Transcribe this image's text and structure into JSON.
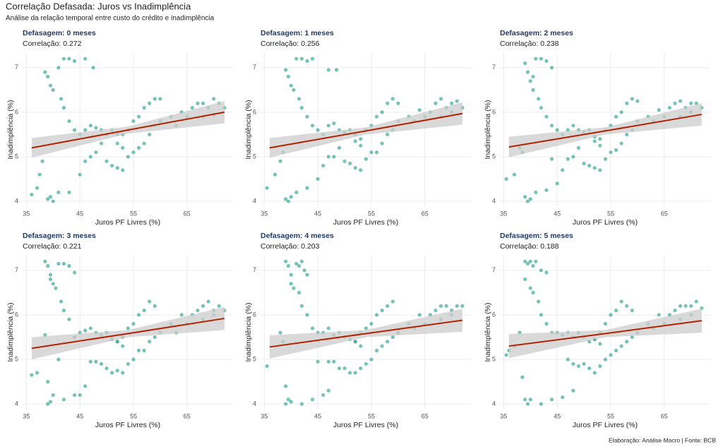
{
  "header": {
    "title": "Correlação Defasada: Juros vs Inadimplência",
    "subtitle": "Análise da relação temporal entre custo do crédito e inadimplência"
  },
  "caption": "Elaboração: Análise Macro | Fonte: BCB",
  "chart_data": [
    {
      "type": "scatter",
      "title": "Defasagem: 0 meses",
      "subtitle": "Correlação: 0.272",
      "x_label": "Juros PF Livres (%)",
      "y_label": "Inadimplência (%)",
      "xlim": [
        34.3,
        73.6
      ],
      "ylim": [
        3.89,
        7.33
      ],
      "xticks": [
        35,
        45,
        55,
        65
      ],
      "yticks": [
        4,
        5,
        6,
        7
      ],
      "grid": true,
      "color": "#3aa897",
      "fit_color": "#b22200",
      "band_color": "#cccccc",
      "x": [
        36,
        37,
        37.5,
        38,
        39,
        39.5,
        40,
        41,
        43,
        45,
        46,
        38.5,
        39,
        39.5,
        40,
        41,
        42,
        43,
        44,
        46,
        47.5,
        41.5,
        42,
        43,
        44,
        45,
        46,
        47,
        48,
        49,
        50,
        51,
        52,
        53,
        54,
        55,
        56,
        57,
        58,
        59,
        60,
        47,
        48,
        49,
        50,
        51,
        52,
        53,
        54,
        55,
        56,
        57,
        58,
        59,
        60,
        62,
        63,
        65,
        66,
        67,
        68,
        69,
        70,
        71,
        72,
        70,
        68,
        64,
        52,
        53
      ],
      "y": [
        4.15,
        4.3,
        4.6,
        4.9,
        4.05,
        4.1,
        4.0,
        4.2,
        4.2,
        4.6,
        4.9,
        6.9,
        6.8,
        6.6,
        6.5,
        7.0,
        7.2,
        7.2,
        7.15,
        7.2,
        7.0,
        6.3,
        6.1,
        5.8,
        5.6,
        5.5,
        5.6,
        5.7,
        5.65,
        5.6,
        5.5,
        5.6,
        5.5,
        5.5,
        5.6,
        5.8,
        5.9,
        6.1,
        6.2,
        6.3,
        6.3,
        5.0,
        5.1,
        5.3,
        4.9,
        4.8,
        4.75,
        4.7,
        5.0,
        5.1,
        5.2,
        5.3,
        5.5,
        5.7,
        5.8,
        5.9,
        5.7,
        5.9,
        6.1,
        6.2,
        6.2,
        6.1,
        6.3,
        6.2,
        6.1,
        5.95,
        5.9,
        6.0,
        5.3,
        5.2
      ],
      "fit": {
        "x": [
          36,
          54,
          72
        ],
        "y": [
          5.2,
          5.6,
          6.0
        ],
        "lower": [
          4.98,
          5.52,
          5.75
        ],
        "upper": [
          5.42,
          5.68,
          6.25
        ]
      }
    },
    {
      "type": "scatter",
      "title": "Defasagem: 1 meses",
      "subtitle": "Correlação: 0.256",
      "x_label": "Juros PF Livres (%)",
      "y_label": "Inadimplência (%)",
      "xlim": [
        34.3,
        73.6
      ],
      "ylim": [
        3.89,
        7.33
      ],
      "xticks": [
        35,
        45,
        55,
        65
      ],
      "yticks": [
        4,
        5,
        6,
        7
      ],
      "grid": true,
      "color": "#3aa897",
      "fit_color": "#b22200",
      "band_color": "#cccccc",
      "x": [
        35.5,
        37,
        38,
        38.5,
        39,
        39.5,
        40,
        41,
        43,
        45,
        46,
        39,
        39.5,
        40,
        40.5,
        41,
        42,
        43,
        44,
        47,
        48.5,
        41.5,
        42,
        43,
        44,
        45,
        46,
        47,
        48,
        49,
        50,
        51,
        52,
        53,
        54,
        55,
        56,
        57,
        58,
        59,
        60,
        47,
        48,
        49,
        50,
        51,
        52,
        53,
        54,
        55,
        56,
        57,
        58,
        59,
        60,
        62,
        63,
        65,
        66,
        67,
        68,
        69,
        70,
        71,
        72,
        70,
        68,
        64,
        52,
        53
      ],
      "y": [
        4.3,
        4.6,
        4.9,
        5.1,
        4.05,
        4.0,
        4.1,
        4.2,
        4.3,
        4.5,
        4.8,
        6.95,
        6.8,
        6.6,
        6.5,
        7.2,
        7.2,
        7.15,
        7.2,
        6.95,
        6.95,
        6.3,
        6.1,
        5.9,
        5.7,
        5.6,
        5.5,
        5.7,
        5.75,
        5.6,
        5.55,
        5.6,
        5.5,
        5.4,
        5.6,
        5.7,
        5.9,
        6.0,
        6.2,
        6.3,
        6.2,
        5.0,
        5.0,
        5.2,
        4.9,
        4.85,
        4.75,
        4.7,
        4.95,
        5.1,
        5.1,
        5.3,
        5.5,
        5.6,
        5.8,
        5.9,
        5.8,
        5.9,
        6.0,
        6.2,
        6.3,
        6.1,
        6.2,
        6.25,
        6.1,
        6.0,
        5.9,
        6.05,
        5.35,
        5.25
      ],
      "fit": {
        "x": [
          36,
          54,
          72
        ],
        "y": [
          5.2,
          5.58,
          5.97
        ],
        "lower": [
          4.98,
          5.5,
          5.72
        ],
        "upper": [
          5.42,
          5.66,
          6.22
        ]
      }
    },
    {
      "type": "scatter",
      "title": "Defasagem: 2 meses",
      "subtitle": "Correlação: 0.238",
      "x_label": "Juros PF Livres (%)",
      "y_label": "Inadimplência (%)",
      "xlim": [
        34.3,
        73.6
      ],
      "ylim": [
        3.89,
        7.33
      ],
      "xticks": [
        35,
        45,
        55,
        65
      ],
      "yticks": [
        4,
        5,
        6,
        7
      ],
      "grid": true,
      "color": "#3aa897",
      "fit_color": "#b22200",
      "band_color": "#cccccc",
      "x": [
        35.5,
        37,
        38,
        38.5,
        39,
        39.5,
        40,
        41,
        43,
        45,
        46,
        39,
        39.5,
        40,
        40.5,
        41,
        42,
        43,
        44,
        40.5,
        41.5,
        42,
        43,
        44,
        45,
        46,
        47,
        48,
        49,
        50,
        51,
        52,
        53,
        54,
        55,
        56,
        57,
        58,
        59,
        60,
        47,
        48,
        49,
        50,
        51,
        52,
        53,
        54,
        55,
        56,
        57,
        58,
        59,
        60,
        62,
        63,
        65,
        66,
        67,
        68,
        69,
        70,
        71,
        72,
        70,
        68,
        64,
        52,
        53,
        44
      ],
      "y": [
        4.5,
        4.6,
        5.2,
        5.1,
        4.1,
        4.0,
        4.05,
        4.2,
        4.25,
        4.4,
        4.7,
        7.1,
        6.9,
        6.7,
        6.5,
        7.2,
        7.2,
        7.15,
        7.0,
        6.8,
        6.3,
        6.1,
        5.9,
        5.7,
        5.6,
        5.5,
        5.6,
        5.7,
        5.6,
        5.55,
        5.6,
        5.45,
        5.4,
        5.6,
        5.7,
        5.9,
        6.0,
        6.2,
        6.3,
        6.25,
        4.95,
        5.0,
        5.2,
        4.85,
        4.8,
        4.75,
        4.7,
        4.95,
        5.1,
        5.15,
        5.3,
        5.5,
        5.6,
        5.8,
        5.9,
        5.8,
        5.9,
        6.1,
        6.2,
        6.25,
        6.1,
        6.2,
        6.2,
        6.1,
        6.0,
        5.9,
        6.05,
        5.35,
        5.25,
        4.95
      ],
      "fit": {
        "x": [
          36,
          54,
          72
        ],
        "y": [
          5.22,
          5.58,
          5.95
        ],
        "lower": [
          4.99,
          5.5,
          5.7
        ],
        "upper": [
          5.45,
          5.66,
          6.2
        ]
      }
    },
    {
      "type": "scatter",
      "title": "Defasagem: 3 meses",
      "subtitle": "Correlação: 0.221",
      "x_label": "Juros PF Livres (%)",
      "y_label": "Inadimplência (%)",
      "xlim": [
        34.3,
        73.6
      ],
      "ylim": [
        3.89,
        7.33
      ],
      "xticks": [
        35,
        45,
        55,
        65
      ],
      "yticks": [
        4,
        5,
        6,
        7
      ],
      "grid": true,
      "color": "#3aa897",
      "fit_color": "#b22200",
      "band_color": "#cccccc",
      "x": [
        36,
        37,
        38.5,
        39,
        39,
        39.5,
        40,
        42,
        44,
        45,
        46,
        38.5,
        39,
        39.5,
        40,
        41,
        42,
        43,
        44,
        39.5,
        40.5,
        41.5,
        42,
        43,
        44,
        45,
        46,
        47,
        48,
        49,
        50,
        51,
        52,
        53,
        54,
        55,
        56,
        57,
        58,
        59,
        47,
        48,
        49,
        50,
        51,
        52,
        53,
        54,
        55,
        56,
        57,
        58,
        59,
        60,
        62,
        63,
        65,
        66,
        67,
        68,
        69,
        70,
        71,
        72,
        70,
        68,
        64,
        52,
        53,
        41
      ],
      "y": [
        4.65,
        4.7,
        5.55,
        4.5,
        4.0,
        4.05,
        4.2,
        4.1,
        4.2,
        4.2,
        4.4,
        7.2,
        7.1,
        6.9,
        6.7,
        7.15,
        7.15,
        7.1,
        6.95,
        6.8,
        6.6,
        6.3,
        6.1,
        5.9,
        5.5,
        5.6,
        5.65,
        5.7,
        5.6,
        5.55,
        5.6,
        5.45,
        5.4,
        5.5,
        5.7,
        5.8,
        6.0,
        6.1,
        6.3,
        6.2,
        4.95,
        4.95,
        4.9,
        4.8,
        4.7,
        4.75,
        4.7,
        4.9,
        5.0,
        5.2,
        5.2,
        5.4,
        5.5,
        5.6,
        5.8,
        5.6,
        5.8,
        6.0,
        6.1,
        6.2,
        6.3,
        6.1,
        6.2,
        6.1,
        6.0,
        5.9,
        6.0,
        5.4,
        5.3,
        5.0
      ],
      "fit": {
        "x": [
          36,
          54,
          72
        ],
        "y": [
          5.25,
          5.58,
          5.92
        ],
        "lower": [
          5.0,
          5.5,
          5.66
        ],
        "upper": [
          5.5,
          5.66,
          6.18
        ]
      }
    },
    {
      "type": "scatter",
      "title": "Defasagem: 4 meses",
      "subtitle": "Correlação: 0.203",
      "x_label": "Juros PF Livres (%)",
      "y_label": "Inadimplência (%)",
      "xlim": [
        34.3,
        73.6
      ],
      "ylim": [
        3.89,
        7.33
      ],
      "xticks": [
        35,
        45,
        55,
        65
      ],
      "yticks": [
        4,
        5,
        6,
        7
      ],
      "grid": true,
      "color": "#3aa897",
      "fit_color": "#b22200",
      "band_color": "#cccccc",
      "x": [
        35.5,
        38,
        38.5,
        39,
        39,
        39.5,
        40,
        42,
        44,
        46,
        47,
        39,
        39.5,
        40,
        41,
        41.5,
        42,
        42.5,
        43,
        40,
        40.5,
        41.5,
        42,
        43,
        44,
        45,
        46,
        47,
        48,
        49,
        50,
        51,
        52,
        53,
        54,
        55,
        56,
        57,
        58,
        59,
        47,
        48,
        49,
        50,
        51,
        52,
        53,
        54,
        55,
        56,
        57,
        58,
        59,
        60,
        62,
        63,
        65,
        66,
        67,
        68,
        69,
        70,
        71,
        72,
        70,
        68,
        64,
        52,
        53,
        45
      ],
      "y": [
        4.85,
        5.6,
        5.4,
        4.4,
        4.0,
        4.1,
        4.05,
        4.0,
        4.1,
        4.2,
        4.3,
        7.2,
        7.1,
        6.9,
        7.15,
        7.1,
        7.2,
        7.0,
        6.9,
        6.7,
        6.6,
        6.5,
        6.2,
        6.0,
        5.7,
        5.6,
        5.6,
        5.7,
        5.55,
        5.6,
        5.5,
        5.45,
        5.4,
        5.6,
        5.7,
        5.8,
        6.0,
        6.1,
        6.2,
        6.3,
        4.95,
        4.95,
        4.8,
        4.8,
        4.7,
        4.7,
        4.8,
        4.9,
        5.0,
        5.2,
        5.3,
        5.4,
        5.5,
        5.6,
        5.8,
        5.7,
        5.8,
        6.0,
        6.1,
        6.2,
        6.2,
        6.1,
        6.2,
        6.2,
        6.0,
        5.9,
        6.0,
        5.4,
        5.3,
        4.95
      ],
      "fit": {
        "x": [
          36,
          54,
          72
        ],
        "y": [
          5.28,
          5.58,
          5.88
        ],
        "lower": [
          5.02,
          5.5,
          5.62
        ],
        "upper": [
          5.54,
          5.66,
          6.14
        ]
      }
    },
    {
      "type": "scatter",
      "title": "Defasagem: 5 meses",
      "subtitle": "Correlação: 0.188",
      "x_label": "Juros PF Livres (%)",
      "y_label": "Inadimplência (%)",
      "xlim": [
        34.3,
        73.6
      ],
      "ylim": [
        3.89,
        7.33
      ],
      "xticks": [
        35,
        45,
        55,
        65
      ],
      "yticks": [
        4,
        5,
        6,
        7
      ],
      "grid": true,
      "color": "#3aa897",
      "fit_color": "#b22200",
      "band_color": "#cccccc",
      "x": [
        35.5,
        37,
        38,
        38.5,
        39,
        39.5,
        40,
        42,
        44,
        46,
        48,
        39,
        39.5,
        40,
        40.5,
        41,
        42,
        43,
        39,
        40,
        40.5,
        41.5,
        42,
        43,
        44,
        45,
        46,
        47,
        48,
        49,
        50,
        51,
        52,
        53,
        54,
        55,
        56,
        57,
        58,
        59,
        47,
        48,
        49,
        50,
        51,
        52,
        53,
        54,
        55,
        56,
        57,
        58,
        59,
        60,
        62,
        63,
        65,
        66,
        67,
        68,
        69,
        70,
        71,
        72,
        70,
        68,
        64,
        52,
        53,
        36
      ],
      "y": [
        5.1,
        5.3,
        5.6,
        4.6,
        4.1,
        4.0,
        4.1,
        4.0,
        4.1,
        4.15,
        4.3,
        7.2,
        7.15,
        7.2,
        7.1,
        7.2,
        7.0,
        6.95,
        6.8,
        6.6,
        6.5,
        6.3,
        6.0,
        5.8,
        5.6,
        5.6,
        5.55,
        5.6,
        5.5,
        5.6,
        5.5,
        5.4,
        5.45,
        5.6,
        5.8,
        6.0,
        6.1,
        6.3,
        6.2,
        6.1,
        5.0,
        4.9,
        4.85,
        4.9,
        4.8,
        4.7,
        4.85,
        5.0,
        5.1,
        5.2,
        5.3,
        5.4,
        5.5,
        5.6,
        5.8,
        5.7,
        5.8,
        6.0,
        6.1,
        6.2,
        6.2,
        6.2,
        6.3,
        6.15,
        6.0,
        5.9,
        6.0,
        5.45,
        5.35,
        5.2
      ],
      "fit": {
        "x": [
          36,
          54,
          72
        ],
        "y": [
          5.3,
          5.58,
          5.87
        ],
        "lower": [
          5.03,
          5.5,
          5.6
        ],
        "upper": [
          5.57,
          5.66,
          6.14
        ]
      }
    }
  ]
}
